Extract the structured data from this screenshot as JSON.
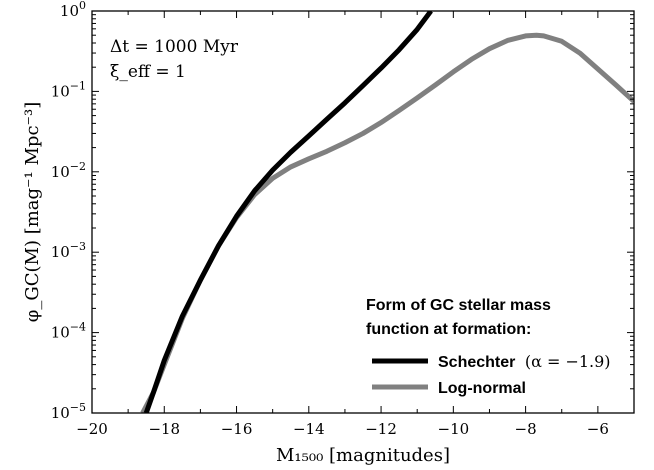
{
  "chart_data": {
    "type": "line",
    "xlabel": "M₁₅₀₀ [magnitudes]",
    "ylabel": "φ_GC(M) [mag⁻¹ Mpc⁻³]",
    "xlim": [
      -20,
      -5
    ],
    "ylim": [
      1e-05,
      1
    ],
    "yscale": "log",
    "xticks": [
      -20,
      -18,
      -16,
      -14,
      -12,
      -10,
      -8,
      -6
    ],
    "xtick_labels": [
      "−20",
      "−18",
      "−16",
      "−14",
      "−12",
      "−10",
      "−8",
      "−6"
    ],
    "yticks": [
      {
        "value": 1,
        "base": "10",
        "exp": "0"
      },
      {
        "value": 0.1,
        "base": "10",
        "exp": "−1"
      },
      {
        "value": 0.01,
        "base": "10",
        "exp": "−2"
      },
      {
        "value": 0.001,
        "base": "10",
        "exp": "−3"
      },
      {
        "value": 0.0001,
        "base": "10",
        "exp": "−4"
      },
      {
        "value": 1e-05,
        "base": "10",
        "exp": "−5"
      }
    ],
    "annotations": [
      "Δt = 1000 Myr",
      "ξ_eff = 1"
    ],
    "legend": {
      "title_lines": [
        "Form of GC stellar mass",
        "function at formation:"
      ],
      "placement": "lower-right"
    },
    "series": [
      {
        "name": "Schechter",
        "name_suffix": "(α = −1.9)",
        "color": "#000000",
        "x": [
          -18.5,
          -18.3,
          -18.0,
          -17.5,
          -17.0,
          -16.5,
          -16.0,
          -15.5,
          -15.0,
          -14.5,
          -14.0,
          -13.5,
          -13.0,
          -12.5,
          -12.0,
          -11.5,
          -11.0,
          -10.62
        ],
        "y": [
          1e-05,
          1.8e-05,
          4.5e-05,
          0.00016,
          0.00045,
          0.0012,
          0.0028,
          0.0058,
          0.0105,
          0.0175,
          0.028,
          0.045,
          0.072,
          0.118,
          0.195,
          0.33,
          0.59,
          1.0
        ]
      },
      {
        "name": "Log-normal",
        "name_suffix": "",
        "color": "#808080",
        "x": [
          -18.6,
          -18.3,
          -18.0,
          -17.5,
          -17.0,
          -16.5,
          -16.0,
          -15.5,
          -15.0,
          -14.5,
          -14.0,
          -13.5,
          -13.0,
          -12.5,
          -12.0,
          -11.5,
          -11.0,
          -10.5,
          -10.0,
          -9.5,
          -9.0,
          -8.5,
          -8.0,
          -7.7,
          -7.5,
          -7.0,
          -6.5,
          -6.0,
          -5.5,
          -5.0
        ],
        "y": [
          1e-05,
          1.8e-05,
          4e-05,
          0.00015,
          0.00045,
          0.0012,
          0.0027,
          0.0052,
          0.0083,
          0.0115,
          0.0145,
          0.018,
          0.023,
          0.03,
          0.041,
          0.058,
          0.083,
          0.12,
          0.175,
          0.25,
          0.34,
          0.43,
          0.49,
          0.5,
          0.49,
          0.42,
          0.3,
          0.19,
          0.12,
          0.075
        ]
      }
    ]
  }
}
